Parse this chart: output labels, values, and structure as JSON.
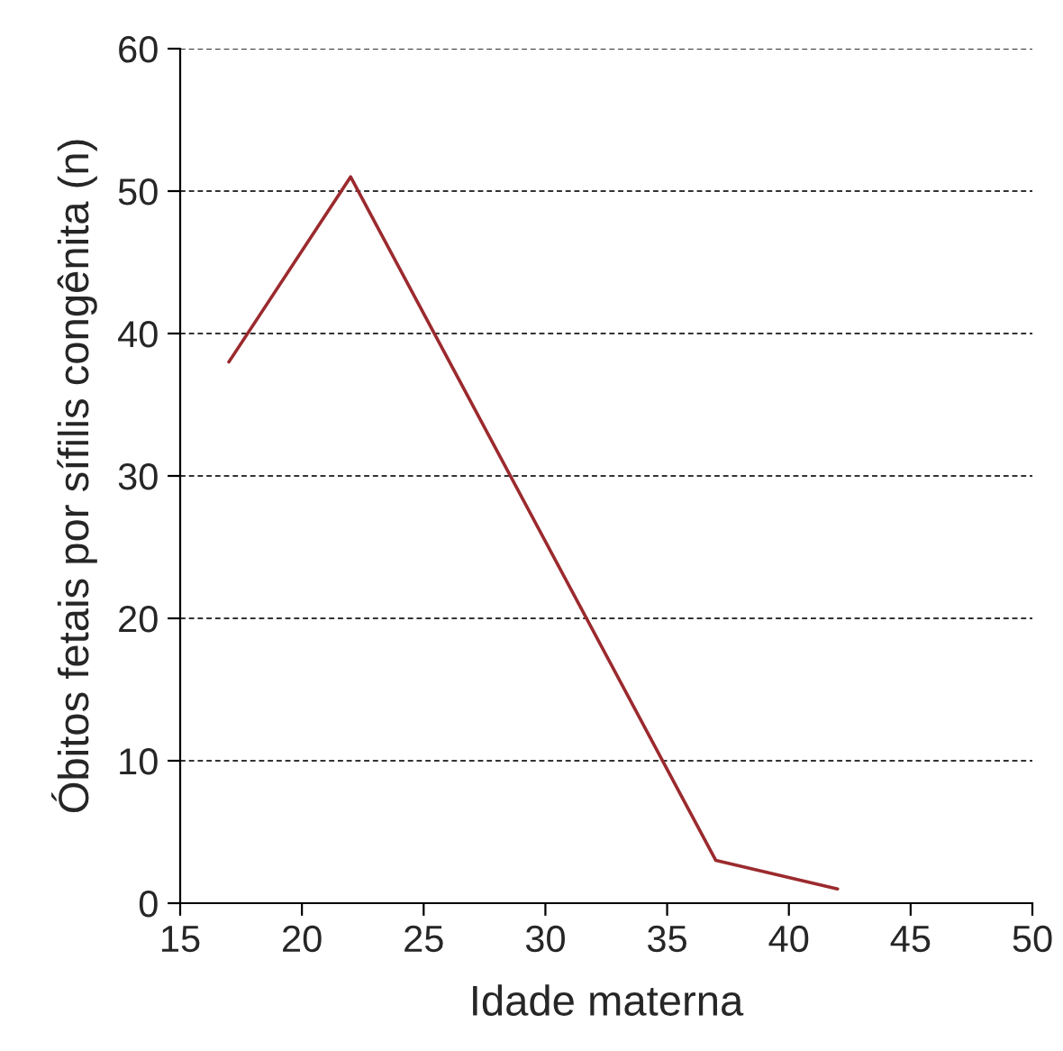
{
  "chart_data": {
    "type": "line",
    "xlabel": "Idade materna",
    "ylabel": "Óbitos fetais por sífilis congênita (n)",
    "x": [
      17,
      22,
      37,
      42
    ],
    "series": [
      {
        "color": "#9b2a2e",
        "values": [
          38,
          51,
          3,
          1
        ]
      }
    ],
    "xlim": [
      15,
      50
    ],
    "xticks": [
      15,
      20,
      25,
      30,
      35,
      40,
      45,
      50
    ],
    "ylim": [
      0,
      60
    ],
    "yticks": [
      0,
      10,
      20,
      30,
      40,
      50,
      60
    ],
    "grid": "y"
  }
}
